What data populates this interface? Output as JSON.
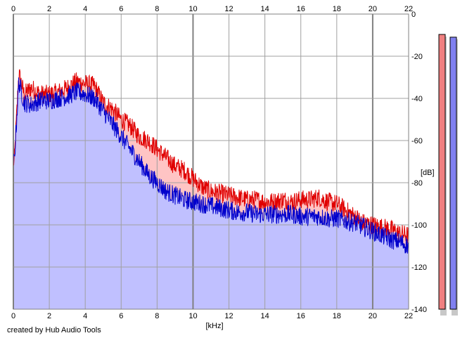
{
  "credit": "created by Hub Audio Tools",
  "colors": {
    "left_line": "#e00000",
    "left_fill": "#ffc4c4",
    "right_line": "#0000cc",
    "right_fill": "#c0c0ff",
    "grid": "#a0a0a0",
    "major_grid": "#808080",
    "meter_left": "#f08080",
    "meter_right": "#8080f0"
  },
  "chart_data": {
    "type": "area",
    "title": "",
    "xlabel": "[kHz]",
    "ylabel": "[dB]",
    "xlim": [
      0,
      22
    ],
    "ylim": [
      -140,
      0
    ],
    "x_ticks": [
      "0",
      "2",
      "4",
      "6",
      "8",
      "10",
      "12",
      "14",
      "16",
      "18",
      "20",
      "22"
    ],
    "y_ticks": [
      "0",
      "-20",
      "-40",
      "-60",
      "-80",
      "-100",
      "-120",
      "-140"
    ],
    "grid": true,
    "series": [
      {
        "color": "red",
        "x": [
          0.05,
          0.3,
          0.6,
          1.0,
          1.5,
          2.0,
          2.5,
          3.0,
          3.5,
          4.0,
          4.5,
          5.0,
          5.5,
          6.0,
          6.5,
          7.0,
          7.5,
          8.0,
          8.5,
          9.0,
          9.5,
          10.0,
          10.5,
          11.0,
          11.5,
          12.0,
          12.5,
          13.0,
          13.5,
          14.0,
          14.5,
          15.0,
          15.5,
          16.0,
          16.5,
          17.0,
          17.5,
          18.0,
          18.5,
          19.0,
          19.5,
          20.0,
          20.5,
          21.0,
          21.5,
          22.0
        ],
        "values": [
          -70,
          -28,
          -38,
          -35,
          -38,
          -38,
          -37,
          -35,
          -32,
          -33,
          -34,
          -42,
          -45,
          -50,
          -53,
          -58,
          -60,
          -64,
          -68,
          -72,
          -74,
          -78,
          -82,
          -84,
          -85,
          -86,
          -87,
          -88,
          -88,
          -89,
          -89,
          -88,
          -89,
          -88,
          -88,
          -87,
          -89,
          -90,
          -93,
          -96,
          -99,
          -100,
          -101,
          -102,
          -104,
          -105
        ]
      },
      {
        "color": "blue",
        "x": [
          0.05,
          0.3,
          0.6,
          1.0,
          1.5,
          2.0,
          2.5,
          3.0,
          3.5,
          4.0,
          4.5,
          5.0,
          5.5,
          6.0,
          6.5,
          7.0,
          7.5,
          8.0,
          8.5,
          9.0,
          9.5,
          10.0,
          10.5,
          11.0,
          11.5,
          12.0,
          12.5,
          13.0,
          13.5,
          14.0,
          14.5,
          15.0,
          15.5,
          16.0,
          16.5,
          17.0,
          17.5,
          18.0,
          18.5,
          19.0,
          19.5,
          20.0,
          20.5,
          21.0,
          21.5,
          22.0
        ],
        "values": [
          -70,
          -32,
          -42,
          -43,
          -41,
          -41,
          -40,
          -39,
          -37,
          -38,
          -40,
          -46,
          -52,
          -58,
          -64,
          -70,
          -76,
          -80,
          -84,
          -86,
          -88,
          -89,
          -90,
          -91,
          -92,
          -93,
          -94,
          -94,
          -95,
          -95,
          -95,
          -95,
          -95,
          -96,
          -96,
          -96,
          -97,
          -97,
          -98,
          -99,
          -101,
          -103,
          -105,
          -107,
          -108,
          -110
        ]
      }
    ],
    "meters": [
      {
        "color": "red",
        "level_db": -5
      },
      {
        "color": "blue",
        "level_db": -6
      }
    ]
  }
}
